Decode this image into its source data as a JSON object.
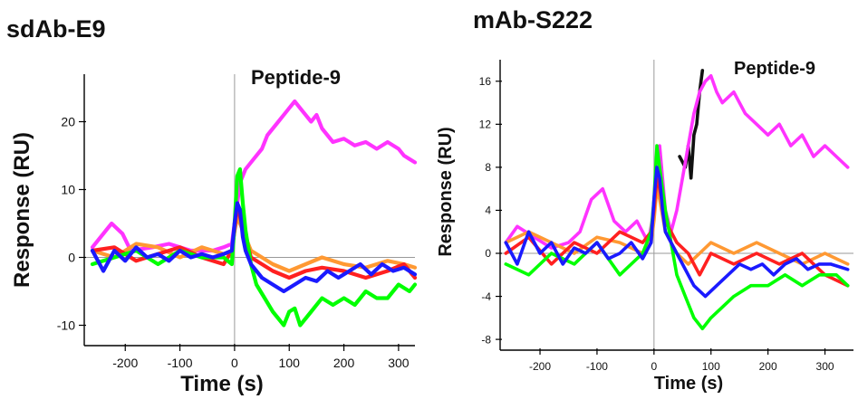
{
  "chart_data": [
    {
      "type": "line",
      "title": "sdAb-E9",
      "xlabel": "Time (s)",
      "ylabel": "Response (RU)",
      "xlim": [
        -275,
        330
      ],
      "ylim": [
        -13,
        27
      ],
      "xticks": [
        -200,
        -100,
        0,
        100,
        200,
        300
      ],
      "yticks": [
        -10,
        0,
        10,
        20
      ],
      "annotation": "Peptide-9",
      "grid": false,
      "series": [
        {
          "color": "#ff33ff",
          "x": [
            -260,
            -235,
            -225,
            -205,
            -190,
            -150,
            -120,
            -80,
            -40,
            -20,
            -5,
            0,
            5,
            10,
            20,
            30,
            50,
            60,
            80,
            90,
            100,
            110,
            115,
            125,
            140,
            150,
            160,
            180,
            200,
            220,
            240,
            260,
            280,
            300,
            310,
            320,
            330
          ],
          "y": [
            1.5,
            4,
            5,
            3.5,
            1,
            1.5,
            2,
            1,
            1,
            1.5,
            2,
            5,
            8,
            11,
            13,
            14,
            16,
            18,
            20,
            21,
            22,
            23,
            22.5,
            21.5,
            20,
            21,
            19,
            17,
            17.5,
            16.5,
            17,
            16,
            17,
            16,
            15,
            14.5,
            14
          ]
        },
        {
          "color": "#ff9933",
          "x": [
            -260,
            -220,
            -180,
            -140,
            -100,
            -60,
            -20,
            -5,
            0,
            5,
            10,
            20,
            30,
            50,
            70,
            100,
            130,
            160,
            200,
            240,
            280,
            310,
            330
          ],
          "y": [
            1,
            0,
            2,
            1.5,
            0,
            1.5,
            0.5,
            1,
            4,
            6,
            5,
            3,
            1,
            0,
            -1,
            -2,
            -1,
            0,
            -1,
            -1.5,
            -0.5,
            -1,
            -1.5
          ]
        },
        {
          "color": "#ff2020",
          "x": [
            -260,
            -220,
            -180,
            -140,
            -100,
            -60,
            -20,
            -5,
            0,
            5,
            10,
            20,
            30,
            50,
            70,
            100,
            130,
            160,
            200,
            240,
            280,
            310,
            330
          ],
          "y": [
            1,
            1.5,
            -0.5,
            0.5,
            1.5,
            0,
            -1,
            1,
            4,
            8,
            6,
            3,
            0,
            -1,
            -2,
            -3,
            -2,
            -1.5,
            -2,
            -3,
            -2,
            -1,
            -3
          ]
        },
        {
          "color": "#00ff00",
          "x": [
            -260,
            -220,
            -180,
            -140,
            -100,
            -60,
            -20,
            -5,
            0,
            5,
            10,
            15,
            20,
            30,
            40,
            55,
            70,
            80,
            90,
            100,
            110,
            120,
            140,
            160,
            180,
            200,
            220,
            240,
            260,
            280,
            300,
            320,
            330
          ],
          "y": [
            -1,
            0,
            1,
            -1,
            1,
            0,
            0,
            -1,
            5,
            12,
            13,
            8,
            4,
            -1,
            -4,
            -6,
            -8,
            -9,
            -10,
            -8,
            -7.5,
            -10,
            -8,
            -6,
            -7,
            -6,
            -7,
            -5,
            -6,
            -6,
            -4,
            -5,
            -4
          ]
        },
        {
          "color": "#1a1aff",
          "x": [
            -260,
            -240,
            -220,
            -200,
            -180,
            -160,
            -140,
            -120,
            -100,
            -80,
            -60,
            -40,
            -20,
            -5,
            0,
            5,
            10,
            15,
            20,
            30,
            50,
            70,
            90,
            110,
            130,
            150,
            170,
            190,
            210,
            230,
            250,
            270,
            290,
            310,
            330
          ],
          "y": [
            1,
            -2,
            1,
            -0.5,
            1.5,
            0,
            0.5,
            -0.5,
            1,
            0,
            0.5,
            0,
            0.5,
            1,
            5,
            8,
            7,
            3,
            1,
            -1,
            -3,
            -4,
            -5,
            -4,
            -3,
            -3.5,
            -2,
            -3,
            -2,
            -1,
            -2.5,
            -1,
            -2,
            -1.5,
            -2.5
          ]
        }
      ]
    },
    {
      "type": "line",
      "title": "mAb-S222",
      "xlabel": "Time (s)",
      "ylabel": "Response (RU)",
      "xlim": [
        -270,
        350
      ],
      "ylim": [
        -9,
        18
      ],
      "xticks": [
        -200,
        -100,
        0,
        100,
        200,
        300
      ],
      "yticks": [
        -8,
        -4,
        0,
        4,
        8,
        12,
        16
      ],
      "annotation": "Peptide-9",
      "grid": false,
      "series": [
        {
          "color": "#111111",
          "x": [
            45,
            55,
            60,
            65,
            70,
            75,
            80,
            85
          ],
          "y": [
            9,
            8,
            10,
            7,
            11,
            12,
            15,
            17
          ]
        },
        {
          "color": "#ff33ff",
          "x": [
            -260,
            -240,
            -210,
            -180,
            -150,
            -130,
            -110,
            -90,
            -70,
            -50,
            -30,
            -10,
            0,
            5,
            10,
            20,
            30,
            40,
            50,
            60,
            70,
            80,
            90,
            100,
            110,
            120,
            140,
            160,
            180,
            200,
            220,
            240,
            260,
            280,
            300,
            320,
            340
          ],
          "y": [
            1,
            2.5,
            1.5,
            0.5,
            1,
            2,
            5,
            6,
            3,
            2,
            3,
            1,
            4,
            9,
            10,
            4,
            2,
            4,
            7,
            10,
            13,
            15,
            16,
            16.5,
            15,
            14,
            15,
            13,
            12,
            11,
            12,
            10,
            11,
            9,
            10,
            9,
            8
          ]
        },
        {
          "color": "#ff9933",
          "x": [
            -260,
            -220,
            -180,
            -140,
            -100,
            -60,
            -20,
            -5,
            0,
            5,
            10,
            20,
            40,
            60,
            80,
            100,
            140,
            180,
            220,
            260,
            300,
            340
          ],
          "y": [
            1,
            2,
            1,
            0,
            1.5,
            1,
            0,
            1,
            3,
            6,
            5,
            2,
            0,
            -1,
            0,
            1,
            0,
            1,
            0,
            -1,
            0,
            -1
          ]
        },
        {
          "color": "#ff2020",
          "x": [
            -260,
            -220,
            -180,
            -140,
            -100,
            -60,
            -20,
            -5,
            0,
            5,
            10,
            20,
            40,
            60,
            80,
            100,
            140,
            180,
            220,
            260,
            300,
            340
          ],
          "y": [
            0,
            1.5,
            -1,
            1,
            0,
            2,
            1,
            2,
            4,
            7,
            6,
            3,
            1,
            0,
            -2,
            0,
            -1,
            0,
            -1,
            0,
            -2,
            -3
          ]
        },
        {
          "color": "#00ff00",
          "x": [
            -260,
            -220,
            -180,
            -140,
            -100,
            -60,
            -20,
            -5,
            0,
            5,
            10,
            20,
            30,
            40,
            55,
            70,
            85,
            100,
            120,
            140,
            170,
            200,
            230,
            260,
            290,
            320,
            340
          ],
          "y": [
            -1,
            -2,
            0,
            -1,
            1,
            -2,
            0,
            2,
            5,
            10,
            8,
            4,
            1,
            -2,
            -4,
            -6,
            -7,
            -6,
            -5,
            -4,
            -3,
            -3,
            -2,
            -3,
            -2,
            -2,
            -3
          ]
        },
        {
          "color": "#1a1aff",
          "x": [
            -260,
            -240,
            -220,
            -200,
            -180,
            -160,
            -140,
            -120,
            -100,
            -80,
            -60,
            -40,
            -20,
            -5,
            0,
            5,
            10,
            15,
            20,
            30,
            50,
            70,
            90,
            110,
            130,
            150,
            170,
            190,
            210,
            230,
            250,
            270,
            290,
            310,
            340
          ],
          "y": [
            1,
            -1,
            2,
            0,
            1,
            -1,
            0.5,
            0,
            1,
            -0.5,
            0,
            1,
            -0.5,
            1,
            5,
            8,
            7,
            4,
            2,
            1,
            -1,
            -3,
            -4,
            -3,
            -2,
            -1,
            -1.5,
            -1,
            -2,
            -1,
            -0.5,
            -1.5,
            -1,
            -1,
            -1.5
          ]
        }
      ]
    }
  ]
}
